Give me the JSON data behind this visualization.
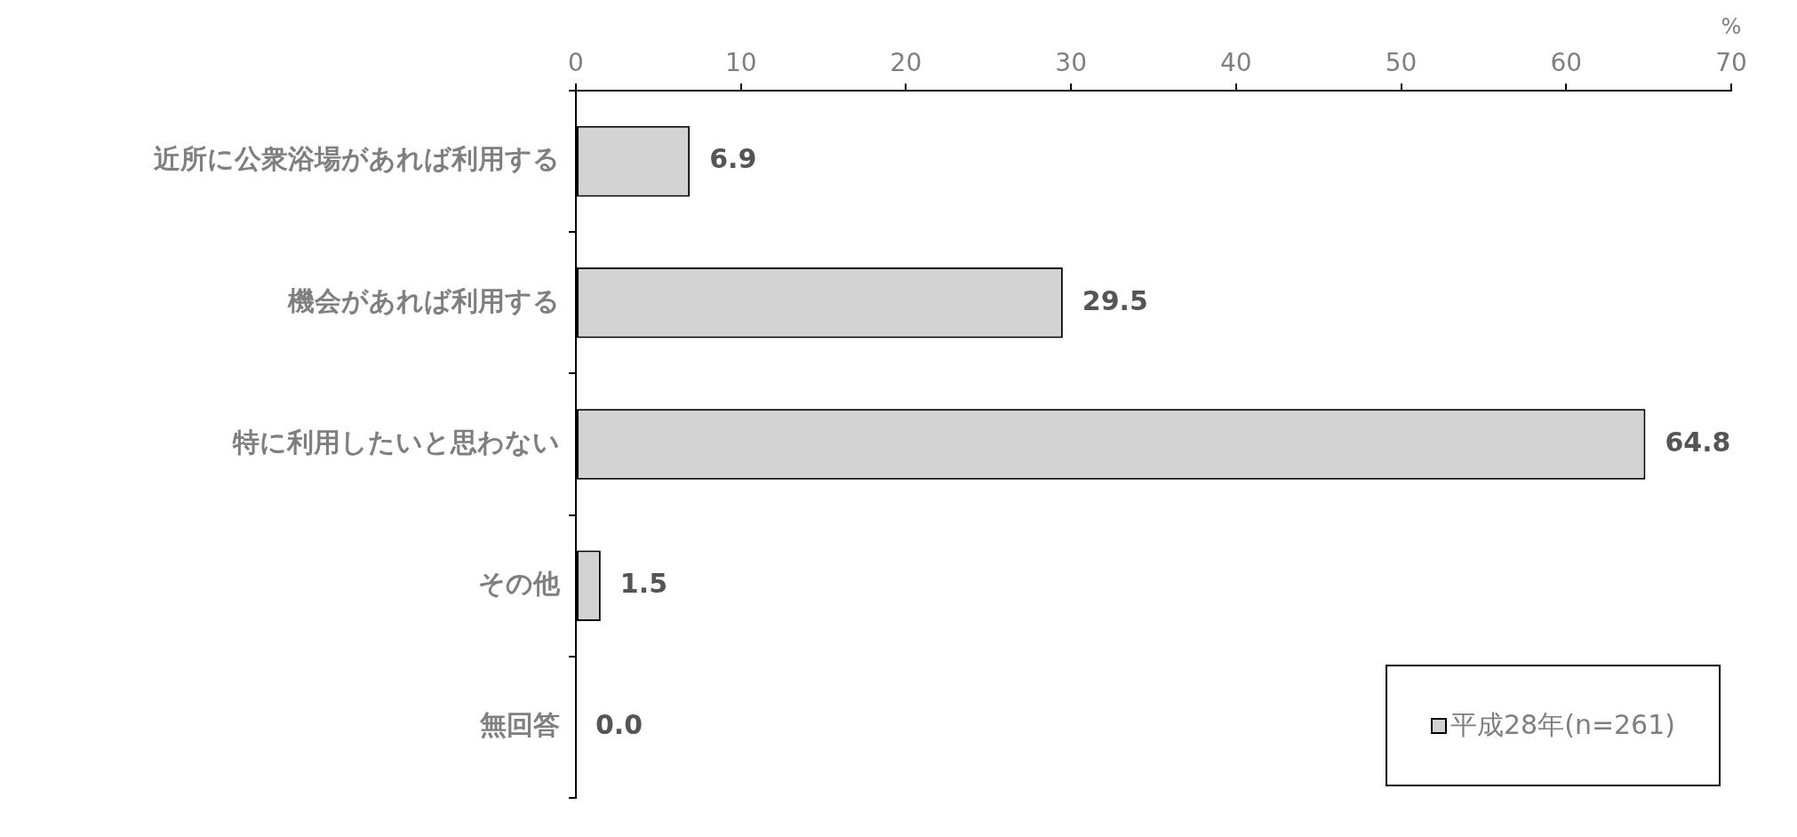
{
  "chart_data": {
    "type": "bar",
    "orientation": "horizontal",
    "xlabel": "%",
    "categories": [
      "近所に公衆浴場があれば利用する",
      "機会があれば利用する",
      "特に利用したいと思わない",
      "その他",
      "無回答"
    ],
    "series": [
      {
        "name": "平成28年(n=261)",
        "color": "#d3d3d3",
        "values": [
          6.9,
          29.5,
          64.8,
          1.5,
          0.0
        ],
        "value_labels": [
          "6.9",
          "29.5",
          "64.8",
          "1.5",
          "0.0"
        ]
      }
    ],
    "xlim": [
      0,
      70
    ],
    "xticks": [
      0,
      10,
      20,
      30,
      40,
      50,
      60,
      70
    ],
    "grid": false,
    "legend": "bottom right"
  }
}
